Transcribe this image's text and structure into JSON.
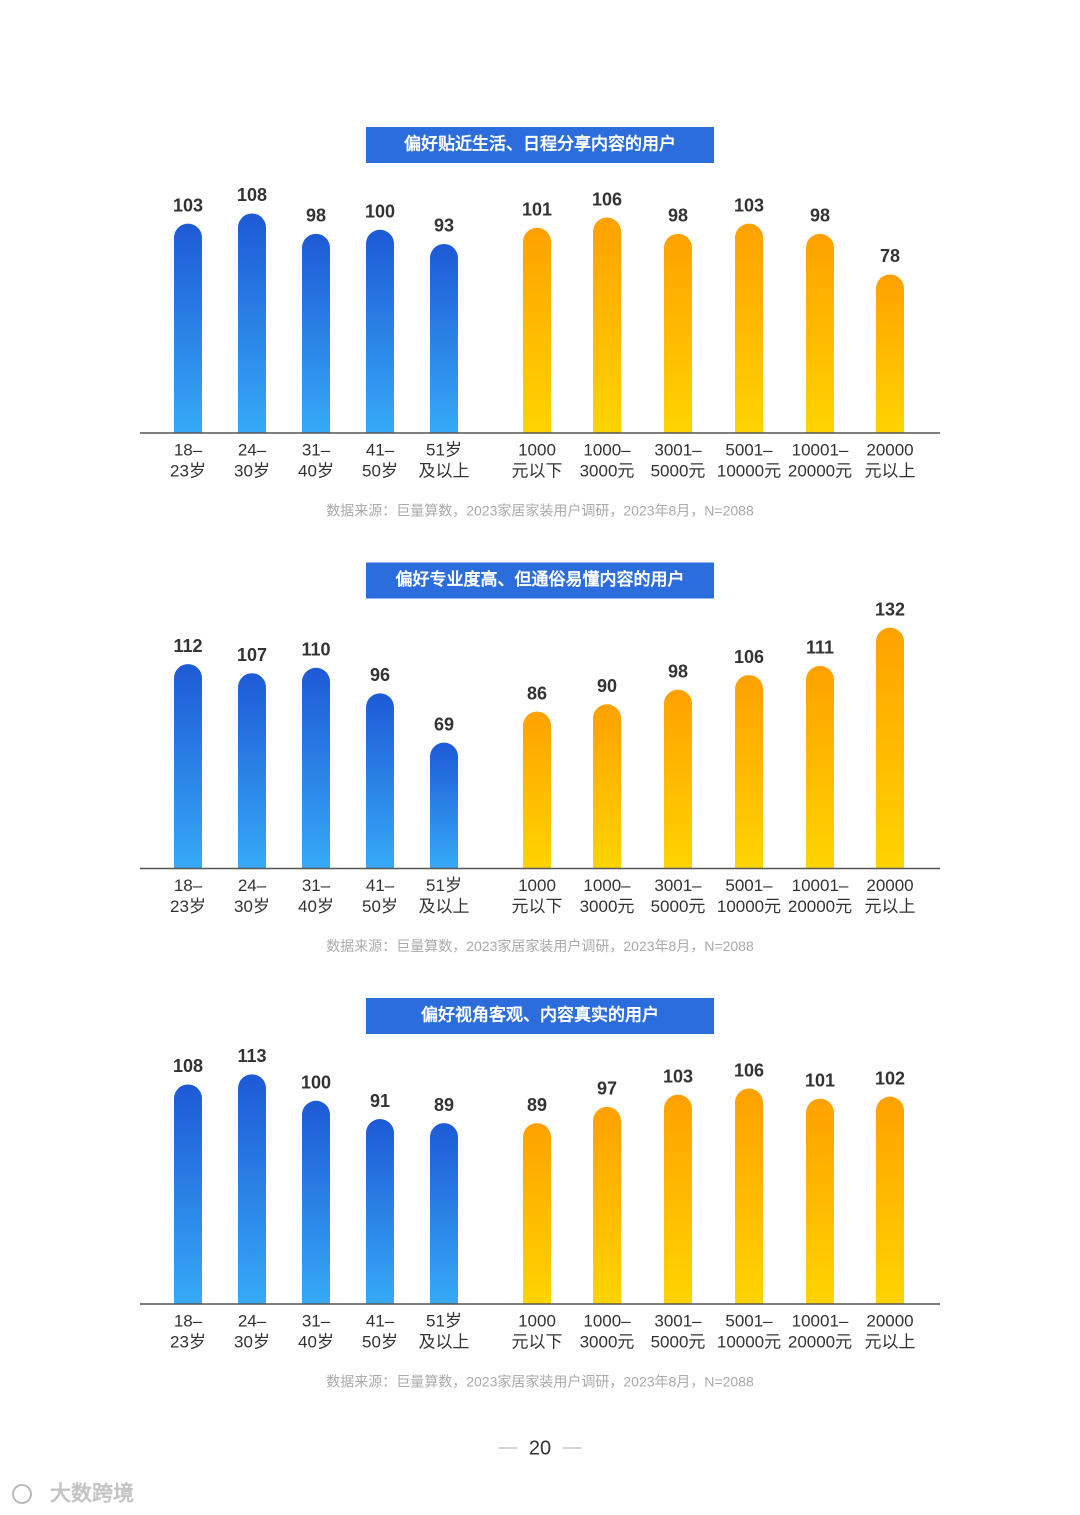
{
  "chart_data": [
    {
      "type": "bar",
      "title": "偏好贴近生活、日程分享内容的用户",
      "categories": [
        [
          "18–",
          "23岁"
        ],
        [
          "24–",
          "30岁"
        ],
        [
          "31–",
          "40岁"
        ],
        [
          "41–",
          "50岁"
        ],
        [
          "51岁",
          "及以上"
        ],
        [
          "1000",
          "元以下"
        ],
        [
          "1000–",
          "3000元"
        ],
        [
          "3001–",
          "5000元"
        ],
        [
          "5001–",
          "10000元"
        ],
        [
          "10001–",
          "20000元"
        ],
        [
          "20000",
          "元以上"
        ]
      ],
      "series": [
        {
          "gradient": [
            "#1e5ad6",
            "#36a9f7"
          ],
          "values": [
            103,
            108,
            98,
            100,
            93,
            null,
            null,
            null,
            null,
            null,
            null
          ]
        },
        {
          "gradient": [
            "#ffa100",
            "#ffd400"
          ],
          "values": [
            null,
            null,
            null,
            null,
            null,
            101,
            106,
            98,
            103,
            98,
            78
          ]
        }
      ],
      "ylim": [
        0,
        123
      ],
      "source": "数据来源：巨量算数，2023家居家装用户调研，2023年8月，N=2088"
    },
    {
      "type": "bar",
      "title": "偏好专业度高、但通俗易懂内容的用户",
      "categories": [
        [
          "18–",
          "23岁"
        ],
        [
          "24–",
          "30岁"
        ],
        [
          "31–",
          "40岁"
        ],
        [
          "41–",
          "50岁"
        ],
        [
          "51岁",
          "及以上"
        ],
        [
          "1000",
          "元以下"
        ],
        [
          "1000–",
          "3000元"
        ],
        [
          "3001–",
          "5000元"
        ],
        [
          "5001–",
          "10000元"
        ],
        [
          "10001–",
          "20000元"
        ],
        [
          "20000",
          "元以上"
        ]
      ],
      "series": [
        {
          "gradient": [
            "#1e5ad6",
            "#36a9f7"
          ],
          "values": [
            112,
            107,
            110,
            96,
            69,
            null,
            null,
            null,
            null,
            null,
            null
          ]
        },
        {
          "gradient": [
            "#ffa100",
            "#ffd400"
          ],
          "values": [
            null,
            null,
            null,
            null,
            null,
            86,
            90,
            98,
            106,
            111,
            132
          ]
        }
      ],
      "ylim": [
        0,
        137
      ],
      "source": "数据来源：巨量算数，2023家居家装用户调研，2023年8月，N=2088"
    },
    {
      "type": "bar",
      "title": "偏好视角客观、内容真实的用户",
      "categories": [
        [
          "18–",
          "23岁"
        ],
        [
          "24–",
          "30岁"
        ],
        [
          "31–",
          "40岁"
        ],
        [
          "41–",
          "50岁"
        ],
        [
          "51岁",
          "及以上"
        ],
        [
          "1000",
          "元以下"
        ],
        [
          "1000–",
          "3000元"
        ],
        [
          "3001–",
          "5000元"
        ],
        [
          "5001–",
          "10000元"
        ],
        [
          "10001–",
          "20000元"
        ],
        [
          "20000",
          "元以上"
        ]
      ],
      "series": [
        {
          "gradient": [
            "#1e5ad6",
            "#36a9f7"
          ],
          "values": [
            108,
            113,
            100,
            91,
            89,
            null,
            null,
            null,
            null,
            null,
            null
          ]
        },
        {
          "gradient": [
            "#ffa100",
            "#ffd400"
          ],
          "values": [
            null,
            null,
            null,
            null,
            null,
            89,
            97,
            103,
            106,
            101,
            102
          ]
        }
      ],
      "ylim": [
        0,
        123
      ],
      "source": "数据来源：巨量算数，2023家居家装用户调研，2023年8月，N=2088"
    }
  ],
  "page_number": 20,
  "watermark": "大数跨境"
}
